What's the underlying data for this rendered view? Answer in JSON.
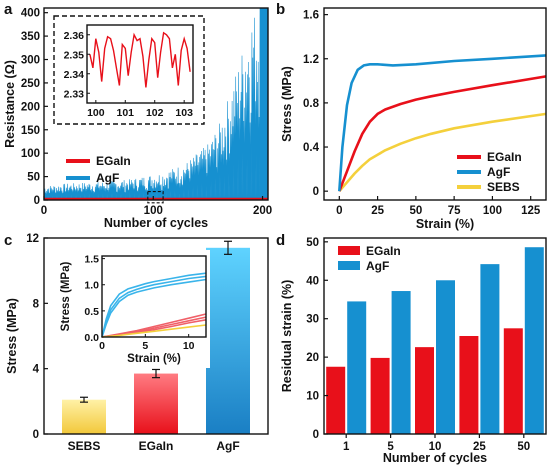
{
  "colors": {
    "red": "#e8101a",
    "blue": "#1690d0",
    "yellow": "#f4d03c",
    "lightblue": "#3ab4ea",
    "lightred": "#f06068",
    "black": "#111111"
  },
  "chart_data": [
    {
      "panel": "a",
      "type": "area",
      "xlabel": "Number of cycles",
      "ylabel": "Resistance (Ω)",
      "xlim": [
        0,
        205
      ],
      "ylim": [
        0,
        410
      ],
      "xticks": [
        "0",
        "100",
        "200"
      ],
      "yticks": [
        "0",
        "50",
        "100",
        "150",
        "200",
        "250",
        "300",
        "350",
        "400"
      ],
      "legend": "bottom-center",
      "series": [
        {
          "name": "EGaIn",
          "color": "#e8101a",
          "x": [
            0,
            205
          ],
          "y": [
            2.35,
            2.35
          ]
        },
        {
          "name": "AgF",
          "color": "#1690d0",
          "x": [
            0,
            20,
            40,
            60,
            80,
            90,
            100,
            110,
            120,
            130,
            140,
            150,
            160,
            165,
            170,
            175,
            180,
            185,
            190,
            195,
            200,
            205
          ],
          "y": [
            30,
            35,
            38,
            40,
            45,
            50,
            55,
            60,
            70,
            80,
            100,
            120,
            160,
            190,
            230,
            270,
            310,
            360,
            400,
            410,
            410,
            410
          ]
        }
      ],
      "inset": {
        "xlim": [
          99.7,
          103.3
        ],
        "ylim": [
          2.325,
          2.365
        ],
        "xticks": [
          "100",
          "101",
          "102",
          "103"
        ],
        "yticks": [
          "2.33",
          "2.34",
          "2.35",
          "2.36"
        ],
        "series": [
          {
            "name": "EGaIn",
            "color": "#e8101a",
            "x": [
              99.8,
              99.9,
              100.0,
              100.1,
              100.2,
              100.3,
              100.4,
              100.5,
              100.6,
              100.7,
              100.8,
              100.9,
              101.0,
              101.1,
              101.2,
              101.3,
              101.4,
              101.5,
              101.6,
              101.7,
              101.8,
              101.9,
              102.0,
              102.1,
              102.2,
              102.3,
              102.4,
              102.5,
              102.6,
              102.7,
              102.8,
              102.9,
              103.0,
              103.1,
              103.2
            ],
            "y": [
              2.35,
              2.343,
              2.358,
              2.351,
              2.336,
              2.353,
              2.359,
              2.358,
              2.352,
              2.343,
              2.334,
              2.355,
              2.353,
              2.339,
              2.351,
              2.36,
              2.357,
              2.358,
              2.349,
              2.333,
              2.347,
              2.358,
              2.356,
              2.338,
              2.351,
              2.361,
              2.36,
              2.358,
              2.343,
              2.35,
              2.334,
              2.352,
              2.358,
              2.353,
              2.341
            ]
          }
        ]
      }
    },
    {
      "panel": "b",
      "type": "line",
      "xlabel": "Strain (%)",
      "ylabel": "Stress (MPa)",
      "xlim": [
        -10,
        135
      ],
      "ylim": [
        -0.08,
        1.66
      ],
      "xticks": [
        "0",
        "25",
        "50",
        "75",
        "100",
        "125"
      ],
      "yticks": [
        "0",
        "0.4",
        "0.8",
        "1.2",
        "1.6"
      ],
      "legend": "bottom-right",
      "series": [
        {
          "name": "EGaIn",
          "color": "#e8101a",
          "x": [
            0,
            5,
            10,
            15,
            20,
            25,
            30,
            40,
            50,
            60,
            75,
            100,
            135
          ],
          "y": [
            0,
            0.18,
            0.36,
            0.52,
            0.63,
            0.7,
            0.74,
            0.79,
            0.83,
            0.86,
            0.9,
            0.96,
            1.04
          ]
        },
        {
          "name": "AgF",
          "color": "#1690d0",
          "x": [
            0,
            2,
            5,
            8,
            12,
            16,
            20,
            25,
            35,
            50,
            75,
            100,
            135
          ],
          "y": [
            0,
            0.4,
            0.78,
            0.98,
            1.1,
            1.14,
            1.15,
            1.15,
            1.14,
            1.15,
            1.18,
            1.2,
            1.23
          ]
        },
        {
          "name": "SEBS",
          "color": "#f4d03c",
          "x": [
            0,
            5,
            10,
            15,
            20,
            25,
            30,
            40,
            50,
            60,
            75,
            100,
            135
          ],
          "y": [
            0,
            0.08,
            0.16,
            0.23,
            0.29,
            0.33,
            0.37,
            0.43,
            0.48,
            0.52,
            0.57,
            0.63,
            0.7
          ]
        }
      ]
    },
    {
      "panel": "c",
      "type": "bar",
      "ylabel": "Stress (MPa)",
      "ylim": [
        0,
        12
      ],
      "yticks": [
        "0",
        "4",
        "8",
        "12"
      ],
      "categories": [
        "SEBS",
        "EGaIn",
        "AgF"
      ],
      "values": [
        2.1,
        3.7,
        11.4
      ],
      "errors": [
        0.15,
        0.25,
        0.4
      ],
      "inset": {
        "xlabel": "Strain (%)",
        "ylabel": "Stress (MPa)",
        "xlim": [
          0,
          12
        ],
        "ylim": [
          0,
          1.55
        ],
        "xticks": [
          "0",
          "5",
          "10"
        ],
        "yticks": [
          "0.0",
          "0.5",
          "1.0",
          "1.5"
        ],
        "series": [
          {
            "name": "AgF",
            "color": "#3ab4ea",
            "x": [
              0,
              0.5,
              1,
              2,
              3,
              4,
              5,
              6,
              8,
              10,
              12
            ],
            "y": [
              0,
              0.35,
              0.6,
              0.82,
              0.92,
              0.97,
              1.02,
              1.06,
              1.12,
              1.18,
              1.22
            ]
          },
          {
            "name": "AgF",
            "color": "#3ab4ea",
            "x": [
              0,
              0.5,
              1,
              2,
              3,
              4,
              5,
              6,
              8,
              10,
              12
            ],
            "y": [
              0,
              0.3,
              0.52,
              0.74,
              0.85,
              0.91,
              0.96,
              1.0,
              1.06,
              1.12,
              1.16
            ]
          },
          {
            "name": "AgF",
            "color": "#3ab4ea",
            "x": [
              0,
              0.5,
              1,
              2,
              3,
              4,
              5,
              6,
              8,
              10,
              12
            ],
            "y": [
              0,
              0.25,
              0.46,
              0.68,
              0.8,
              0.86,
              0.9,
              0.94,
              1.0,
              1.05,
              1.1
            ]
          },
          {
            "name": "EGaIn",
            "color": "#f06068",
            "x": [
              0,
              2,
              4,
              6,
              8,
              10,
              12
            ],
            "y": [
              0,
              0.06,
              0.12,
              0.2,
              0.28,
              0.36,
              0.44
            ]
          },
          {
            "name": "EGaIn",
            "color": "#f06068",
            "x": [
              0,
              2,
              4,
              6,
              8,
              10,
              12
            ],
            "y": [
              0,
              0.05,
              0.1,
              0.17,
              0.24,
              0.31,
              0.38
            ]
          },
          {
            "name": "EGaIn",
            "color": "#f06068",
            "x": [
              0,
              2,
              4,
              6,
              8,
              10,
              12
            ],
            "y": [
              0,
              0.04,
              0.09,
              0.14,
              0.2,
              0.27,
              0.33
            ]
          },
          {
            "name": "SEBS",
            "color": "#f4d03c",
            "x": [
              0,
              2,
              4,
              6,
              8,
              10,
              12
            ],
            "y": [
              0,
              0.03,
              0.07,
              0.11,
              0.15,
              0.19,
              0.23
            ]
          }
        ]
      }
    },
    {
      "panel": "d",
      "type": "bar",
      "xlabel": "Number of cycles",
      "ylabel": "Residual strain (%)",
      "ylim": [
        0,
        51
      ],
      "yticks": [
        "0",
        "10",
        "20",
        "30",
        "40",
        "50"
      ],
      "categories": [
        "1",
        "5",
        "10",
        "25",
        "50"
      ],
      "legend": "top-left",
      "series": [
        {
          "name": "EGaIn",
          "color": "#e8101a",
          "values": [
            17.5,
            19.8,
            22.6,
            25.5,
            27.5
          ]
        },
        {
          "name": "AgF",
          "color": "#1690d0",
          "values": [
            34.5,
            37.2,
            40.0,
            44.2,
            48.6
          ]
        }
      ]
    }
  ],
  "panel_labels": [
    "a",
    "b",
    "c",
    "d"
  ]
}
